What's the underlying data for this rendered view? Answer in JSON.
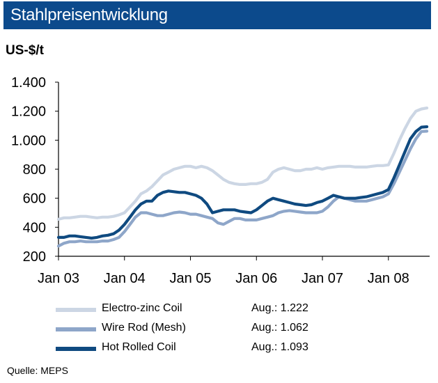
{
  "header": {
    "title": "Stahlpreisentwicklung"
  },
  "unit_label": "US-$/t",
  "source": "Quelle: MEPS",
  "legend": [
    {
      "label": "Electro-zinc Coil",
      "value": "Aug.: 1.222",
      "color": "#ccd6e4"
    },
    {
      "label": "Wire Rod (Mesh)",
      "value": "Aug.: 1.062",
      "color": "#8ea6c9"
    },
    {
      "label": "Hot Rolled Coil",
      "value": "Aug.: 1.093",
      "color": "#0f4a80"
    }
  ],
  "chart_data": {
    "type": "line",
    "title": "Stahlpreisentwicklung",
    "ylabel": "US-$/t",
    "xlabel": "",
    "ylim": [
      200,
      1400
    ],
    "yticks": [
      "200",
      "400",
      "600",
      "800",
      "1.000",
      "1.200",
      "1.400"
    ],
    "xticks": [
      "Jan 03",
      "Jan 04",
      "Jan 05",
      "Jan 06",
      "Jan 07",
      "Jan 08"
    ],
    "x_start": "2003-01",
    "x_end": "2008-08",
    "grid": false,
    "series": [
      {
        "name": "Electro-zinc Coil",
        "color": "#ccd6e4",
        "values": [
          455,
          465,
          465,
          470,
          475,
          475,
          470,
          465,
          470,
          470,
          475,
          485,
          500,
          540,
          580,
          630,
          650,
          680,
          720,
          760,
          780,
          800,
          810,
          820,
          820,
          810,
          820,
          810,
          790,
          760,
          730,
          710,
          700,
          695,
          695,
          700,
          700,
          710,
          730,
          780,
          800,
          810,
          800,
          790,
          790,
          800,
          800,
          810,
          800,
          810,
          815,
          820,
          820,
          820,
          815,
          815,
          815,
          820,
          825,
          825,
          830,
          910,
          1000,
          1080,
          1150,
          1200,
          1215,
          1222
        ]
      },
      {
        "name": "Wire Rod (Mesh)",
        "color": "#8ea6c9",
        "values": [
          270,
          290,
          300,
          300,
          305,
          300,
          300,
          300,
          305,
          305,
          315,
          330,
          370,
          420,
          470,
          500,
          500,
          490,
          480,
          480,
          490,
          500,
          505,
          500,
          490,
          490,
          480,
          470,
          460,
          430,
          420,
          440,
          460,
          460,
          450,
          450,
          450,
          460,
          470,
          480,
          500,
          510,
          515,
          510,
          505,
          500,
          500,
          500,
          510,
          540,
          580,
          610,
          600,
          590,
          580,
          580,
          580,
          590,
          600,
          610,
          630,
          700,
          780,
          860,
          940,
          1010,
          1060,
          1062
        ]
      },
      {
        "name": "Hot Rolled Coil",
        "color": "#0f4a80",
        "values": [
          330,
          330,
          340,
          340,
          335,
          330,
          325,
          330,
          340,
          345,
          355,
          380,
          420,
          470,
          520,
          560,
          580,
          580,
          620,
          640,
          650,
          645,
          640,
          640,
          630,
          620,
          600,
          560,
          500,
          510,
          520,
          520,
          520,
          510,
          505,
          500,
          520,
          550,
          580,
          600,
          590,
          580,
          570,
          560,
          555,
          550,
          555,
          570,
          580,
          600,
          620,
          610,
          600,
          600,
          600,
          605,
          610,
          620,
          630,
          640,
          660,
          740,
          830,
          920,
          1010,
          1060,
          1090,
          1093
        ]
      }
    ]
  }
}
